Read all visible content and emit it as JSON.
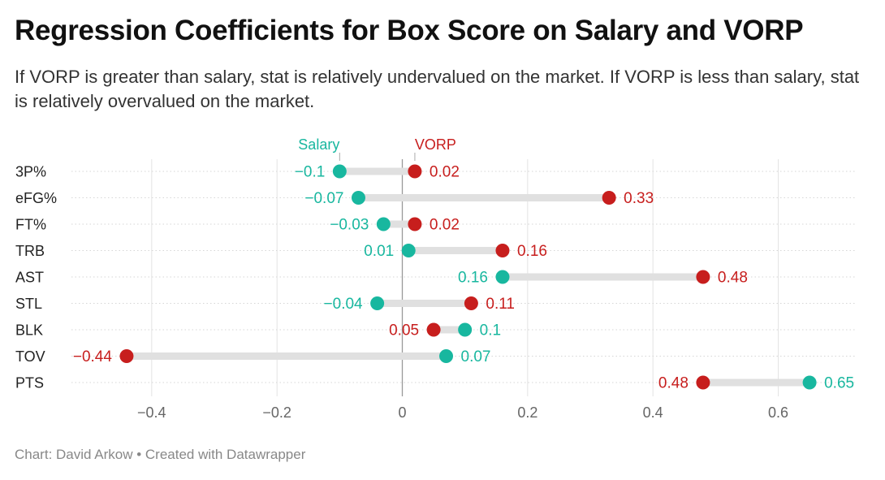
{
  "title": "Regression Coefficients for Box Score on Salary and VORP",
  "subtitle": "If VORP is greater than salary, stat is relatively undervalued on the market. If VORP is less than salary, stat is relatively overvalued on the market.",
  "footer": "Chart: David Arkow • Created with Datawrapper",
  "colors": {
    "salary": "#18b79f",
    "vorp": "#c71e1d",
    "range_bar": "#e0e0e0",
    "grid": "#cccccc",
    "zero_line": "#999999",
    "tick_text": "#666666"
  },
  "chart_data": {
    "type": "dot-range",
    "categories": [
      "3P%",
      "eFG%",
      "FT%",
      "TRB",
      "AST",
      "STL",
      "BLK",
      "TOV",
      "PTS"
    ],
    "series": [
      {
        "name": "Salary",
        "values": [
          -0.1,
          -0.07,
          -0.03,
          0.01,
          0.16,
          -0.04,
          0.1,
          0.07,
          0.65
        ]
      },
      {
        "name": "VORP",
        "values": [
          0.02,
          0.33,
          0.02,
          0.16,
          0.48,
          0.11,
          0.05,
          -0.44,
          0.48
        ]
      }
    ],
    "value_labels": {
      "Salary": [
        "−0.1",
        "−0.07",
        "−0.03",
        "0.01",
        "0.16",
        "−0.04",
        "0.1",
        "0.07",
        "0.65"
      ],
      "VORP": [
        "0.02",
        "0.33",
        "0.02",
        "0.16",
        "0.48",
        "0.11",
        "0.05",
        "−0.44",
        "0.48"
      ]
    },
    "xticks": [
      -0.4,
      -0.2,
      0,
      0.2,
      0.4,
      0.6
    ],
    "xtick_labels": [
      "−0.4",
      "−0.2",
      "0",
      "0.2",
      "0.4",
      "0.6"
    ],
    "xlim": [
      -0.52,
      0.72
    ],
    "grid": true,
    "legend": "labels above first row"
  }
}
